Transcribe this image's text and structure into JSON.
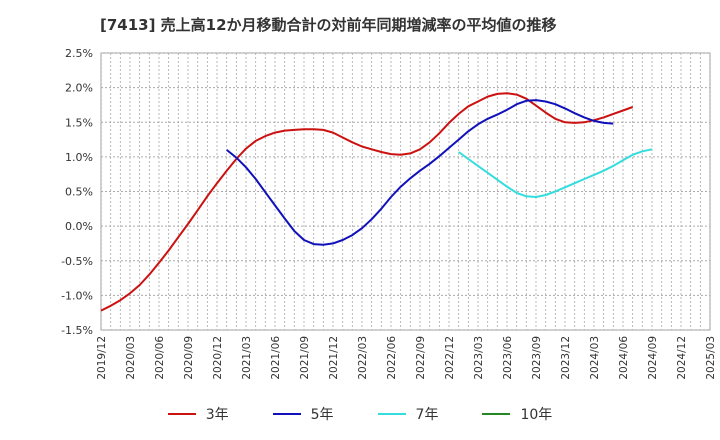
{
  "chart_data": {
    "type": "line",
    "title": "[7413]  売上高12か月移動合計の対前年同期増減率の平均値の推移",
    "xlabel": "",
    "ylabel": "",
    "ylim": [
      -1.5,
      2.5
    ],
    "y_ticks": [
      2.5,
      2.0,
      1.5,
      1.0,
      0.5,
      0.0,
      -0.5,
      -1.0,
      -1.5
    ],
    "y_tick_labels": [
      "2.5%",
      "2.0%",
      "1.5%",
      "1.0%",
      "0.5%",
      "0.0%",
      "-0.5%",
      "-1.0%",
      "-1.5%"
    ],
    "x_tick_labels": [
      "2019/12",
      "2020/03",
      "2020/06",
      "2020/09",
      "2020/12",
      "2021/03",
      "2021/06",
      "2021/09",
      "2021/12",
      "2022/03",
      "2022/06",
      "2022/09",
      "2022/12",
      "2023/03",
      "2023/06",
      "2023/09",
      "2023/12",
      "2024/03",
      "2024/06",
      "2024/09",
      "2024/12",
      "2025/03"
    ],
    "grid": true,
    "legend_position": "bottom",
    "series": [
      {
        "name": "3年",
        "color": "#cc1111",
        "start_index": 0,
        "values": [
          -1.22,
          -1.15,
          -1.07,
          -0.97,
          -0.85,
          -0.7,
          -0.53,
          -0.35,
          -0.16,
          0.03,
          0.23,
          0.43,
          0.62,
          0.8,
          0.97,
          1.12,
          1.23,
          1.3,
          1.35,
          1.38,
          1.39,
          1.4,
          1.4,
          1.39,
          1.35,
          1.28,
          1.21,
          1.15,
          1.11,
          1.07,
          1.04,
          1.03,
          1.05,
          1.11,
          1.21,
          1.34,
          1.49,
          1.62,
          1.73,
          1.8,
          1.87,
          1.91,
          1.92,
          1.9,
          1.84,
          1.74,
          1.64,
          1.55,
          1.5,
          1.49,
          1.5,
          1.53,
          1.57,
          1.62,
          1.67,
          1.72
        ]
      },
      {
        "name": "5年",
        "color": "#1111bb",
        "start_index": 13,
        "values": [
          1.1,
          0.99,
          0.85,
          0.68,
          0.49,
          0.3,
          0.11,
          -0.07,
          -0.2,
          -0.26,
          -0.27,
          -0.25,
          -0.2,
          -0.13,
          -0.03,
          0.1,
          0.25,
          0.42,
          0.57,
          0.69,
          0.8,
          0.9,
          1.01,
          1.13,
          1.25,
          1.37,
          1.47,
          1.55,
          1.61,
          1.68,
          1.76,
          1.81,
          1.82,
          1.8,
          1.76,
          1.7,
          1.63,
          1.57,
          1.52,
          1.49,
          1.48
        ]
      },
      {
        "name": "7年",
        "color": "#33dddd",
        "start_index": 37,
        "values": [
          1.07,
          0.97,
          0.87,
          0.77,
          0.67,
          0.57,
          0.48,
          0.43,
          0.42,
          0.45,
          0.5,
          0.56,
          0.62,
          0.68,
          0.74,
          0.8,
          0.87,
          0.95,
          1.03,
          1.08,
          1.11
        ]
      },
      {
        "name": "10年",
        "color": "#228822",
        "start_index": 0,
        "values": []
      }
    ]
  }
}
